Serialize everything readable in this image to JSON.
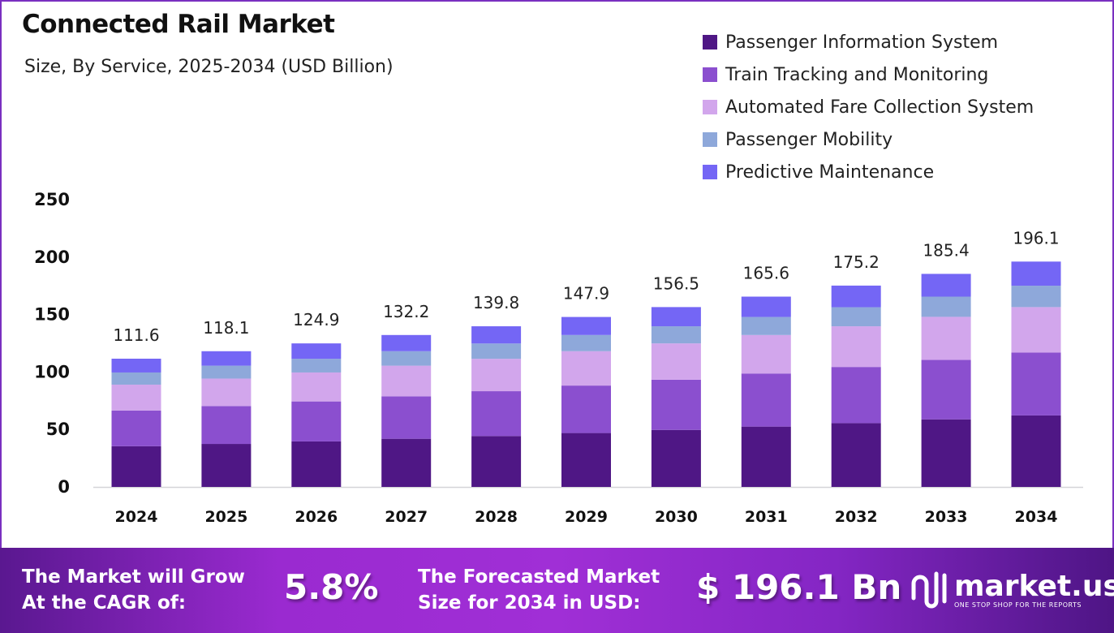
{
  "header": {
    "title": "Connected Rail Market",
    "subtitle": "Size, By Service, 2025-2034 (USD Billion)"
  },
  "chart_data": {
    "type": "bar",
    "stacked": true,
    "categories": [
      "2024",
      "2025",
      "2026",
      "2027",
      "2028",
      "2029",
      "2030",
      "2031",
      "2032",
      "2033",
      "2034"
    ],
    "series": [
      {
        "name": "Passenger Information System",
        "color": "#4f1785",
        "values": [
          35.4,
          37.4,
          39.6,
          41.9,
          44.3,
          46.9,
          49.6,
          52.5,
          55.5,
          58.8,
          62.2
        ]
      },
      {
        "name": "Train Tracking and Monitoring",
        "color": "#8b4fcf",
        "values": [
          31.1,
          33.0,
          34.8,
          36.9,
          39.0,
          41.3,
          43.7,
          46.2,
          48.9,
          51.7,
          54.7
        ]
      },
      {
        "name": "Automated Fare Collection System",
        "color": "#d2a6ec",
        "values": [
          22.5,
          23.9,
          25.2,
          26.7,
          28.2,
          29.9,
          31.6,
          33.5,
          35.4,
          37.5,
          39.6
        ]
      },
      {
        "name": "Passenger Mobility",
        "color": "#8ea8da",
        "values": [
          10.6,
          11.2,
          11.9,
          12.6,
          13.3,
          14.1,
          14.9,
          15.7,
          16.6,
          17.6,
          18.6
        ]
      },
      {
        "name": "Predictive Maintenance",
        "color": "#7466f5",
        "values": [
          12.0,
          12.6,
          13.4,
          14.1,
          15.0,
          15.7,
          16.7,
          17.7,
          18.8,
          19.8,
          21.0
        ]
      }
    ],
    "totals": [
      "111.6",
      "118.1",
      "124.9",
      "132.2",
      "139.8",
      "147.9",
      "156.5",
      "165.6",
      "175.2",
      "185.4",
      "196.1"
    ],
    "yticks": [
      "0",
      "50",
      "100",
      "150",
      "200",
      "250"
    ],
    "ylim": [
      0,
      250
    ],
    "grid": false,
    "legend": "top-right"
  },
  "footer": {
    "cagr_label_1": "The Market will Grow",
    "cagr_label_2": "At the CAGR of:",
    "cagr_value": "5.8%",
    "forecast_label_1": "The Forecasted Market",
    "forecast_label_2": "Size for 2034 in USD:",
    "forecast_value": "$ 196.1 Bn",
    "logo_name": "market.us",
    "logo_tagline": "ONE STOP SHOP FOR THE REPORTS"
  }
}
